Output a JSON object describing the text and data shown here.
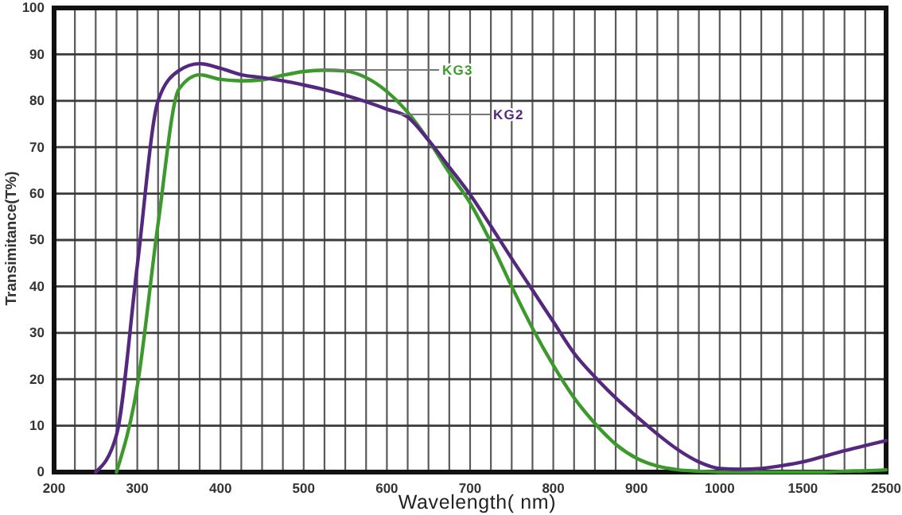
{
  "chart_data": {
    "type": "line",
    "xlabel": "Wavelength( nm)",
    "ylabel": "Transimitance(T%)",
    "categories": [
      "200",
      null,
      null,
      null,
      "300",
      null,
      null,
      null,
      "400",
      null,
      null,
      null,
      "500",
      null,
      null,
      null,
      "600",
      null,
      null,
      null,
      "700",
      null,
      null,
      null,
      "800",
      null,
      null,
      null,
      "900",
      null,
      null,
      null,
      "1000",
      null,
      null,
      null,
      "1500",
      null,
      null,
      null,
      "2500"
    ],
    "ylim": [
      0,
      100
    ],
    "yticks": [
      0,
      10,
      20,
      30,
      40,
      50,
      60,
      70,
      80,
      90,
      100
    ],
    "grid": true,
    "series": [
      {
        "name": "KG3",
        "color": "#3c9a2c",
        "values": [
          null,
          null,
          null,
          0,
          18.5,
          53.5,
          82.5,
          85.6,
          84.6,
          84.3,
          84.5,
          85.5,
          86.3,
          86.6,
          86.4,
          85,
          82,
          77.5,
          71.5,
          64.5,
          58,
          49.5,
          40,
          31,
          23,
          16,
          10.5,
          6,
          3,
          1.3,
          0.5,
          0.2,
          0,
          0,
          0,
          0,
          0,
          0,
          0.2,
          0.3,
          0.5
        ]
      },
      {
        "name": "KG2",
        "color": "#55287f",
        "values": [
          null,
          null,
          0,
          8,
          44.5,
          80,
          86.5,
          88,
          87,
          85.6,
          85,
          84.3,
          83.4,
          82.4,
          81.2,
          79.8,
          78.2,
          76.5,
          71.5,
          65.7,
          59.8,
          53,
          46,
          39.2,
          32.4,
          25.6,
          20.5,
          16,
          12,
          8.2,
          4.8,
          2.2,
          0.8,
          0.6,
          0.8,
          1.4,
          2.2,
          3.4,
          4.6,
          5.7,
          6.8
        ]
      }
    ]
  }
}
